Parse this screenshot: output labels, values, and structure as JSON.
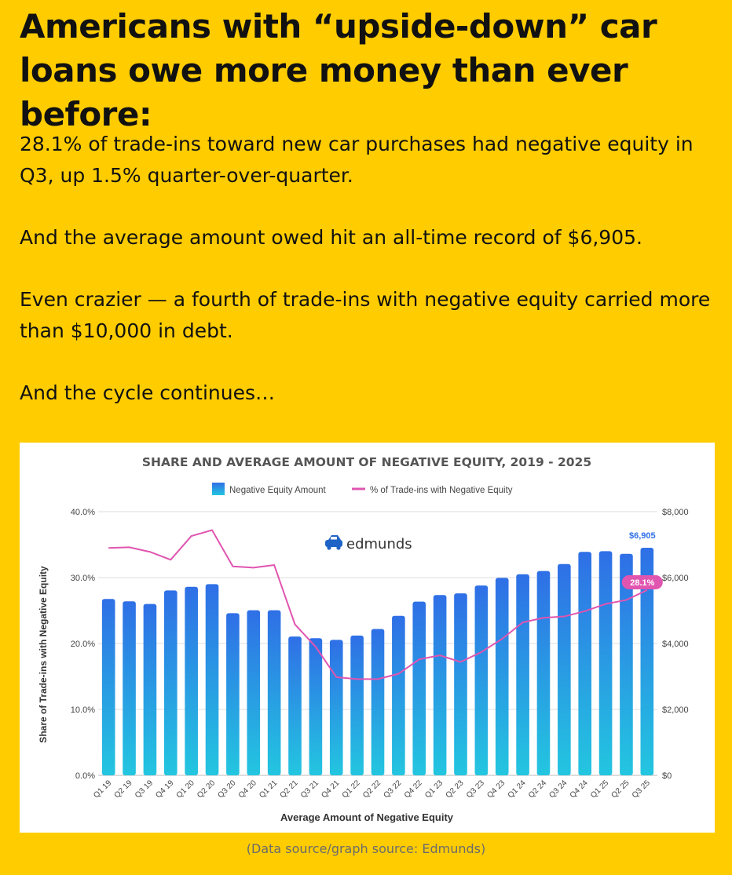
{
  "article": {
    "headline": "Americans with “upside-down” car loans owe more money than ever before:",
    "p1": "28.1% of trade-ins toward new car purchases had negative equity in Q3, up 1.5% quarter-over-quarter.",
    "p2": "And the average amount owed hit an all-time record of $6,905.",
    "p3": "Even crazier — a fourth of trade-ins with negative equity carried more than $10,000 in debt.",
    "p4": "And the cycle continues…",
    "caption": "(Data source/graph source: Edmunds)"
  },
  "chart_data": {
    "type": "bar",
    "title": "SHARE AND AVERAGE AMOUNT OF NEGATIVE EQUITY, 2019 - 2025",
    "xlabel": "Average Amount of Negative Equity",
    "ylabel": "Share of Trade-ins with Negative Equity",
    "logo_text": "edmunds",
    "legend_position": "top",
    "grid": true,
    "categories": [
      "Q1 19",
      "Q2 19",
      "Q3 19",
      "Q4 19",
      "Q1 20",
      "Q2 20",
      "Q3 20",
      "Q4 20",
      "Q1 21",
      "Q2 21",
      "Q3 21",
      "Q4 21",
      "Q1 22",
      "Q2 22",
      "Q3 22",
      "Q4 22",
      "Q1 23",
      "Q2 23",
      "Q3 23",
      "Q4 23",
      "Q1 24",
      "Q2 24",
      "Q3 24",
      "Q4 24",
      "Q1 25",
      "Q2 25",
      "Q3 25"
    ],
    "y_left": {
      "ylim": [
        0,
        40
      ],
      "ticks": [
        0,
        10,
        20,
        30,
        40
      ],
      "tick_labels": [
        "0.0%",
        "10.0%",
        "20.0%",
        "30.0%",
        "40.0%"
      ]
    },
    "y_right": {
      "ylim": [
        0,
        8000
      ],
      "ticks": [
        0,
        2000,
        4000,
        6000,
        8000
      ],
      "tick_labels": [
        "$0",
        "$2,000",
        "$4,000",
        "$6,000",
        "$8,000"
      ]
    },
    "series": [
      {
        "name": "Negative Equity Amount",
        "type": "bar",
        "axis": "right",
        "color_top": "#2F6FE6",
        "color_bottom": "#23C6E0",
        "values": [
          5350,
          5280,
          5200,
          5610,
          5720,
          5800,
          4920,
          5010,
          5010,
          4210,
          4160,
          4110,
          4240,
          4440,
          4840,
          5270,
          5470,
          5520,
          5760,
          5990,
          6100,
          6200,
          6410,
          6780,
          6800,
          6720,
          6905
        ],
        "callout": {
          "index": 26,
          "label": "$6,905",
          "color": "#2F6FE6"
        }
      },
      {
        "name": "% of Trade-ins with Negative Equity",
        "type": "line",
        "axis": "left",
        "color": "#E055B0",
        "values": [
          34.5,
          34.6,
          33.9,
          32.7,
          36.3,
          37.2,
          31.7,
          31.5,
          31.9,
          22.9,
          19.5,
          14.9,
          14.6,
          14.6,
          15.4,
          17.6,
          18.2,
          17.2,
          18.7,
          20.7,
          23.2,
          23.9,
          24.1,
          24.9,
          26.0,
          26.6,
          28.1
        ],
        "callout": {
          "index": 26,
          "label": "28.1%",
          "color": "#E055B0"
        }
      }
    ]
  }
}
